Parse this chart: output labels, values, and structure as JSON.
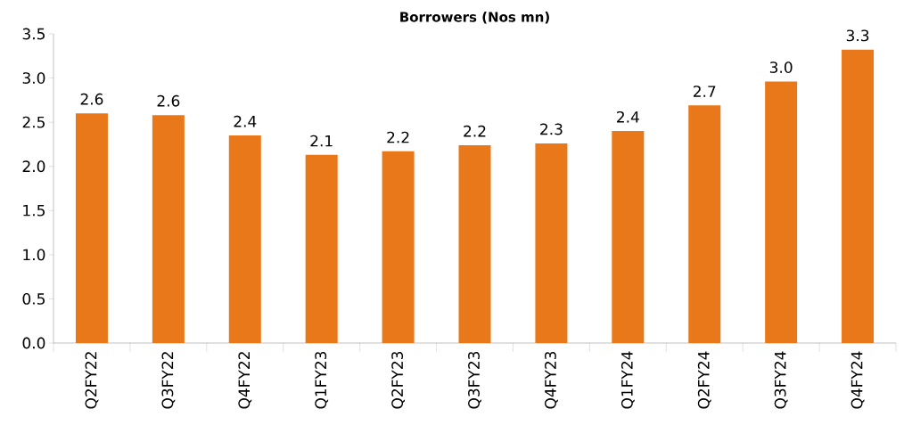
{
  "chart_data": {
    "type": "bar",
    "title": "Borrowers (Nos mn)",
    "categories": [
      "Q2FY22",
      "Q3FY22",
      "Q4FY22",
      "Q1FY23",
      "Q2FY23",
      "Q3FY23",
      "Q4FY23",
      "Q1FY24",
      "Q2FY24",
      "Q3FY24",
      "Q4FY24"
    ],
    "values": [
      2.6,
      2.58,
      2.35,
      2.13,
      2.17,
      2.24,
      2.26,
      2.4,
      2.69,
      2.96,
      3.32
    ],
    "value_labels": [
      "2.6",
      "2.6",
      "2.4",
      "2.1",
      "2.2",
      "2.2",
      "2.3",
      "2.4",
      "2.7",
      "3.0",
      "3.3"
    ],
    "color": "#e8781a",
    "ylim": [
      0,
      3.5
    ],
    "yticks": [
      {
        "value": 0,
        "label": "0.0"
      },
      {
        "value": 0.5,
        "label": "0.5"
      },
      {
        "value": 1,
        "label": "1.0"
      },
      {
        "value": 1.5,
        "label": "1.5"
      },
      {
        "value": 2,
        "label": "2.0"
      },
      {
        "value": 2.5,
        "label": "2.5"
      },
      {
        "value": 3,
        "label": "3.0"
      },
      {
        "value": 3.5,
        "label": "3.5"
      }
    ]
  }
}
